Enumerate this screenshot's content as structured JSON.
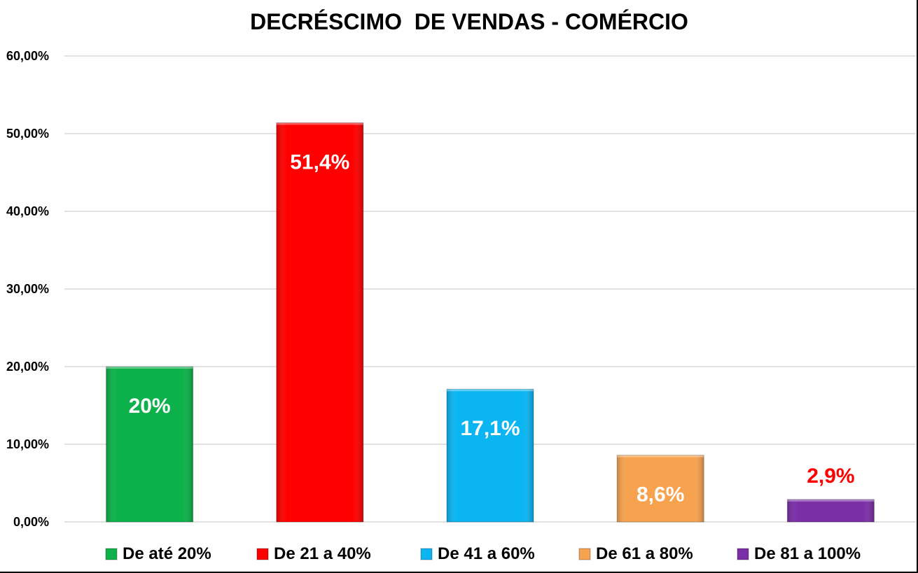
{
  "chart_data": {
    "type": "bar",
    "title": "DECRÉSCIMO  DE VENDAS - COMÉRCIO",
    "xlabel": "",
    "ylabel": "",
    "ylim": [
      0,
      60
    ],
    "yticks": [
      0,
      10,
      20,
      30,
      40,
      50,
      60
    ],
    "ytick_labels": [
      "0,00%",
      "10,00%",
      "20,00%",
      "30,00%",
      "40,00%",
      "50,00%",
      "60,00%"
    ],
    "grid": true,
    "legend_position": "bottom",
    "categories": [
      "De até 20%",
      "De 21 a 40%",
      "De 41 a 60%",
      "De 61 a 80%",
      "De 81 a 100%"
    ],
    "values": [
      20,
      51.4,
      17.1,
      8.6,
      2.9
    ],
    "data_labels": [
      "20%",
      "51,4%",
      "17,1%",
      "8,6%",
      "2,9%"
    ],
    "colors": [
      "#0db14b",
      "#ff0000",
      "#0bb5f2",
      "#f7a24f",
      "#7a2fa6"
    ],
    "label_colors": [
      "#ffffff",
      "#ffffff",
      "#ffffff",
      "#ffffff",
      "#ff0000"
    ]
  }
}
